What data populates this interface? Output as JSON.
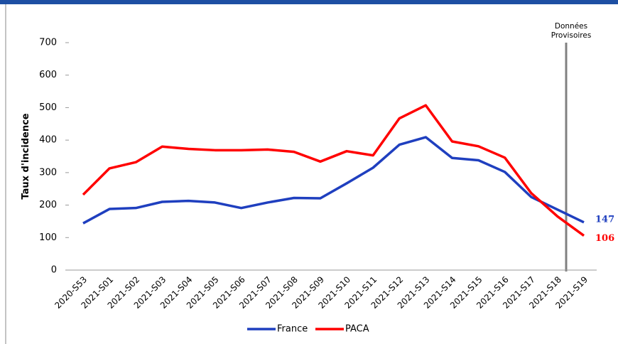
{
  "chart_data": {
    "type": "line",
    "y_label": "Taux d'incidence",
    "annotation": "Données Provisoires",
    "categories": [
      "2020-S53",
      "2021-S01",
      "2021-S02",
      "2021-S03",
      "2021-S04",
      "2021-S05",
      "2021-S06",
      "2021-S07",
      "2021-S08",
      "2021-S09",
      "2021-S10",
      "2021-S11",
      "2021-S12",
      "2021-S13",
      "2021-S14",
      "2021-S15",
      "2021-S16",
      "2021-S17",
      "2021-S18",
      "2021-S19"
    ],
    "series": [
      {
        "name": "France",
        "color": "#1f3fbf",
        "values": [
          144,
          188,
          191,
          210,
          213,
          208,
          191,
          208,
          222,
          221,
          267,
          315,
          386,
          409,
          345,
          338,
          302,
          225,
          186,
          147
        ]
      },
      {
        "name": "PACA",
        "color": "#ff0000",
        "values": [
          232,
          313,
          332,
          380,
          373,
          369,
          369,
          371,
          364,
          334,
          366,
          353,
          467,
          507,
          396,
          381,
          346,
          237,
          165,
          106
        ]
      }
    ],
    "ylim": [
      0,
      700
    ],
    "yticks": [
      0,
      100,
      200,
      300,
      400,
      500,
      600,
      700
    ],
    "grid": false,
    "legend": "bottom"
  }
}
